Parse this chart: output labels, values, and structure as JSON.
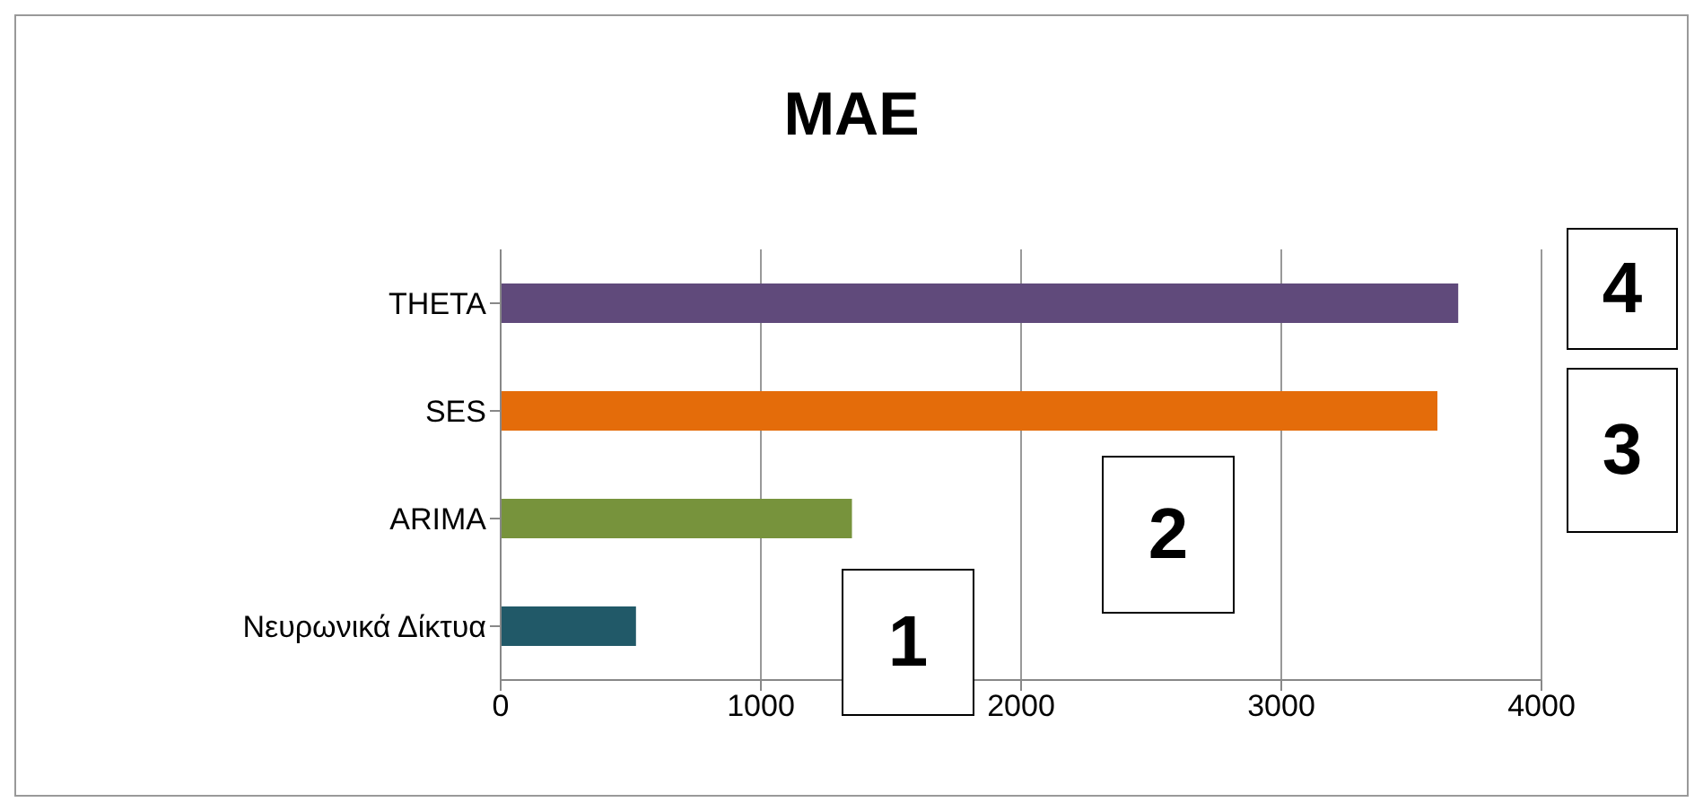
{
  "chart_data": {
    "type": "bar",
    "orientation": "horizontal",
    "title": "MAE",
    "categories": [
      "THETA",
      "SES",
      "ARIMA",
      "Νευρωνικά Δίκτυα"
    ],
    "values": [
      3680,
      3600,
      1350,
      520
    ],
    "colors": [
      "#604a7b",
      "#e46c0a",
      "#77933c",
      "#215968"
    ],
    "xlim": [
      0,
      4000
    ],
    "xticks": [
      0,
      1000,
      2000,
      3000,
      4000
    ],
    "grid": "x",
    "annotations": [
      "4",
      "3",
      "2",
      "1"
    ]
  }
}
